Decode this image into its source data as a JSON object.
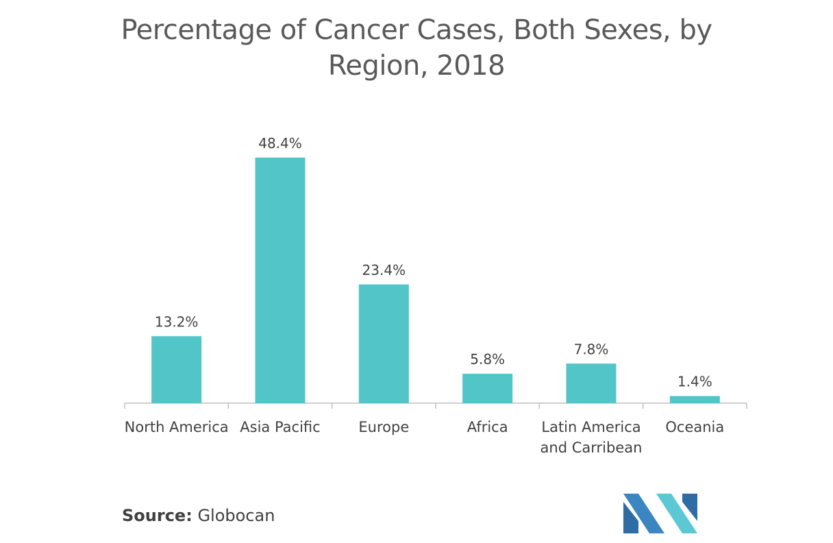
{
  "chart_data": {
    "type": "bar",
    "title_lines": [
      "Percentage of Cancer Cases, Both Sexes, by",
      "Region, 2018"
    ],
    "categories": [
      [
        "North America"
      ],
      [
        "Asia Pacific"
      ],
      [
        "Europe"
      ],
      [
        "Africa"
      ],
      [
        "Latin America",
        "and Carribean"
      ],
      [
        "Oceania"
      ]
    ],
    "values": [
      13.2,
      48.4,
      23.4,
      5.8,
      7.8,
      1.4
    ],
    "data_labels": [
      "13.2%",
      "48.4%",
      "23.4%",
      "5.8%",
      "7.8%",
      "1.4%"
    ],
    "unit": "%",
    "ylim": [
      0,
      50
    ],
    "grid": false,
    "legend": "none",
    "bar_color": "#52C5C9",
    "axis_color": "#BFBFBF",
    "label_color": "#404040"
  },
  "footer": {
    "source_label": "Source:",
    "source_value": "Globocan"
  },
  "logo": {
    "name": "mordor-intelligence-logo",
    "colors": [
      "#2E6DA4",
      "#5BC8D4"
    ]
  }
}
